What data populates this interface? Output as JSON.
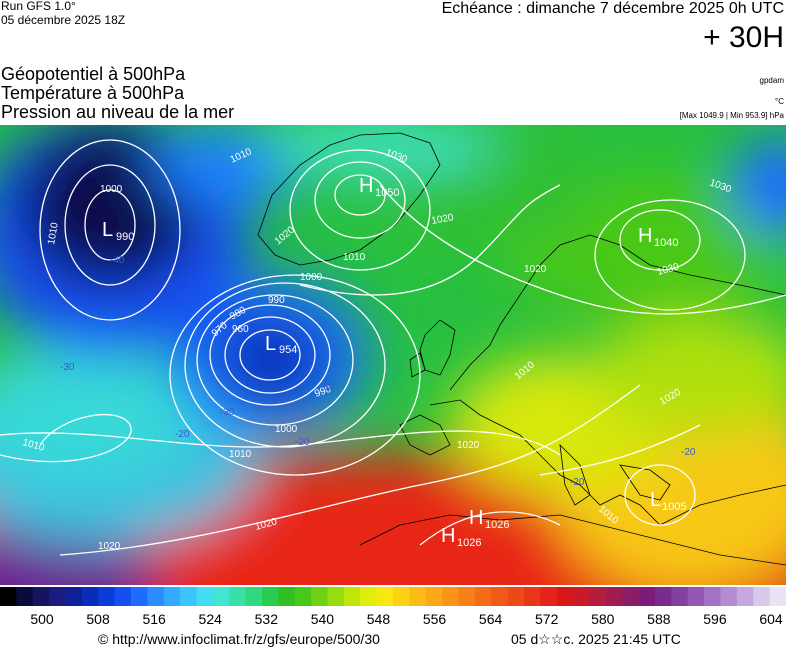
{
  "header": {
    "run": "Run GFS 1.0°",
    "run_date": "05 décembre 2025 18Z",
    "echeance": "Echéance : dimanche 7 décembre 2025 0h UTC",
    "lead": "+ 30H",
    "title1": "Géopotentiel à 500hPa",
    "title2": "Température à 500hPa",
    "title3": "Pression au niveau de la mer",
    "unit_geo": "gpdam",
    "unit_temp": "°C",
    "pressure_range": "[Max 1049.9 | Min 953.9] hPa"
  },
  "map": {
    "pressure_centers": [
      {
        "type": "L",
        "value": "990"
      },
      {
        "type": "H",
        "value": "1050"
      },
      {
        "type": "L",
        "value": "954"
      },
      {
        "type": "H",
        "value": "1040"
      },
      {
        "type": "L",
        "value": "1005"
      },
      {
        "type": "H",
        "value": "1026"
      },
      {
        "type": "H",
        "value": "1026"
      }
    ],
    "isobar_labels": [
      "1000",
      "1010",
      "1030",
      "1020",
      "1010",
      "1000",
      "990",
      "980",
      "970",
      "960",
      "990",
      "1000",
      "1010",
      "1020",
      "1020",
      "1010",
      "1020",
      "1030",
      "1030",
      "1010",
      "1020",
      "1020",
      "1010",
      "1020",
      "1010"
    ],
    "temp_labels": [
      "-40",
      "-30",
      "-30",
      "-30",
      "-20",
      "-20",
      "-20",
      "-20"
    ]
  },
  "colorbar": {
    "colors": [
      "#000000",
      "#0a0a3c",
      "#141460",
      "#1c1c80",
      "#0f1f98",
      "#0a2db8",
      "#0a3cd8",
      "#1450f0",
      "#1e6cff",
      "#2a8cff",
      "#32aaff",
      "#3cc4ff",
      "#44dcf0",
      "#40e6d2",
      "#38e0a8",
      "#30d880",
      "#28cc50",
      "#30c022",
      "#48c818",
      "#70d014",
      "#98dc10",
      "#c0e60c",
      "#e4ec0c",
      "#f8e810",
      "#fcd214",
      "#fcbc16",
      "#fca818",
      "#fc9418",
      "#f88018",
      "#f46c18",
      "#f05a18",
      "#ec4818",
      "#e83618",
      "#e42418",
      "#d81818",
      "#c81a28",
      "#b41c3c",
      "#a01c50",
      "#8c1c64",
      "#7c1c78",
      "#7a2c8c",
      "#8440a0",
      "#9458b4",
      "#a472c4",
      "#b48cd4",
      "#c6a8e0",
      "#d8c8ec",
      "#ece2f6"
    ],
    "ticks": [
      "500",
      "508",
      "516",
      "524",
      "532",
      "540",
      "548",
      "556",
      "564",
      "572",
      "580",
      "588",
      "596",
      "604"
    ]
  },
  "footer": {
    "copyright": "© http://www.infoclimat.fr/z/gfs/europe/500/30",
    "generated": "05 d☆☆c. 2025 21:45 UTC"
  }
}
